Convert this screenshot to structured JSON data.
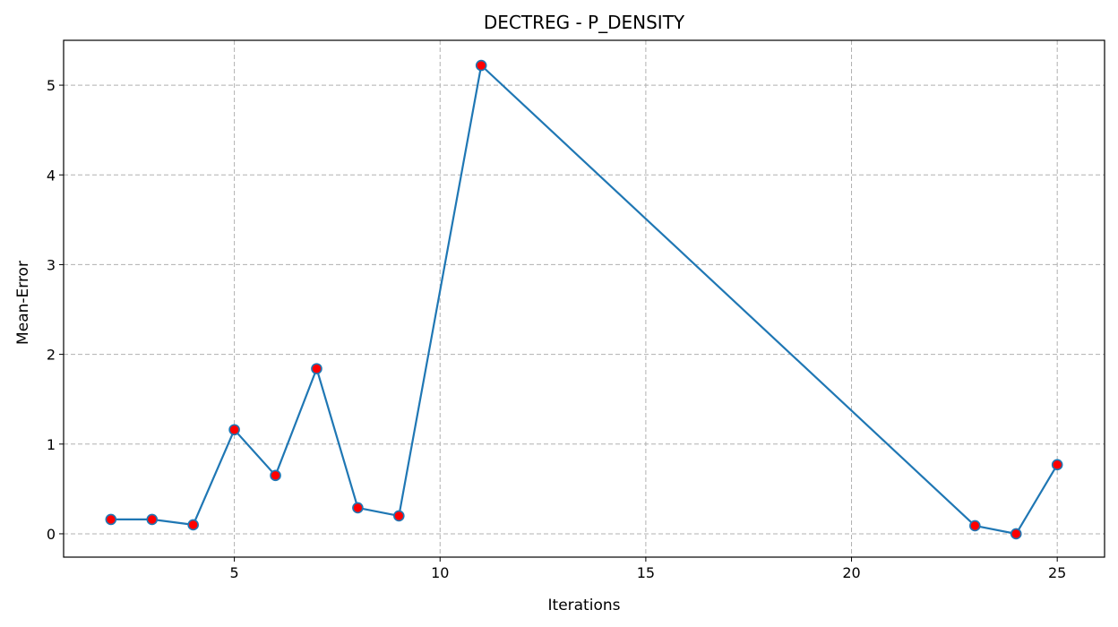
{
  "chart_data": {
    "type": "line",
    "title": "DECTREG - P_DENSITY",
    "xlabel": "Iterations",
    "ylabel": "Mean-Error",
    "xlim": [
      0.85,
      26.15
    ],
    "ylim": [
      -0.26,
      5.5
    ],
    "xticks": [
      5,
      10,
      15,
      20,
      25
    ],
    "yticks": [
      0,
      1,
      2,
      3,
      4,
      5
    ],
    "grid": true,
    "series": [
      {
        "name": "Mean-Error",
        "line_color": "#1f77b4",
        "marker_color": "#ff0000",
        "marker_edge_color": "#1f77b4",
        "x": [
          2,
          3,
          4,
          5,
          6,
          7,
          8,
          9,
          11,
          23,
          24,
          25
        ],
        "y": [
          0.16,
          0.16,
          0.1,
          1.16,
          0.65,
          1.84,
          0.29,
          0.2,
          5.22,
          0.09,
          0.0,
          0.77
        ]
      }
    ]
  }
}
